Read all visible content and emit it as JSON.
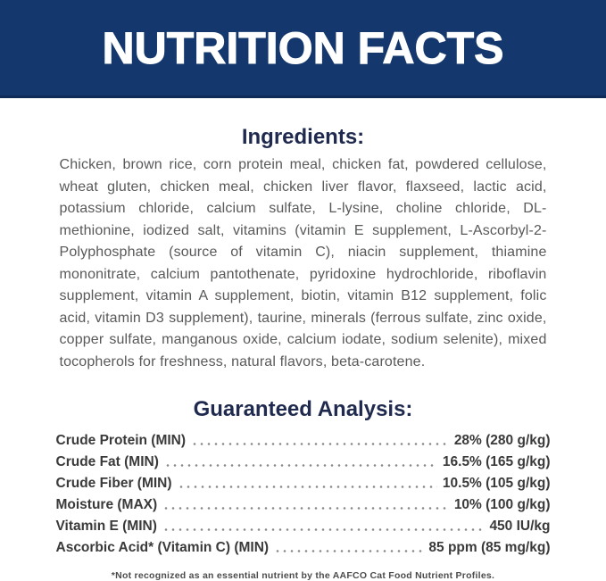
{
  "header": {
    "title": "NUTRITION FACTS"
  },
  "ingredients": {
    "heading": "Ingredients:",
    "text": "Chicken, brown rice, corn protein meal, chicken fat, powdered cellulose, wheat gluten, chicken meal, chicken liver flavor, flaxseed, lactic acid, potassium chloride, calcium sulfate, L-lysine, choline chloride, DL-methionine, iodized salt, vitamins (vitamin E supplement, L-Ascorbyl-2-Polyphosphate (source of vitamin C), niacin supplement, thiamine mononitrate, calcium pantothenate, pyridoxine hydrochloride, riboflavin supplement, vitamin A supplement, biotin, vitamin B12 supplement, folic acid, vitamin D3 supplement), taurine, minerals (ferrous sulfate, zinc oxide, copper sulfate, manganous oxide, calcium iodate, sodium selenite), mixed tocopherols for freshness, natural flavors, beta-carotene."
  },
  "analysis": {
    "heading": "Guaranteed Analysis:",
    "rows": [
      {
        "label": "Crude Protein (MIN)",
        "value": "28% (280 g/kg)"
      },
      {
        "label": "Crude Fat (MIN)",
        "value": "16.5% (165 g/kg)"
      },
      {
        "label": "Crude Fiber (MIN)",
        "value": "10.5% (105 g/kg)"
      },
      {
        "label": "Moisture (MAX)",
        "value": "10% (100 g/kg)"
      },
      {
        "label": "Vitamin E (MIN)",
        "value": "450 IU/kg"
      },
      {
        "label": "Ascorbic Acid* (Vitamin C) (MIN)",
        "value": "85 ppm (85 mg/kg)"
      }
    ]
  },
  "footnote": "*Not recognized as an essential nutrient by the AAFCO Cat Food Nutrient Profiles.",
  "colors": {
    "banner": "#14386d",
    "banner_edge": "#0e2b57",
    "heading": "#1f2a4e",
    "body_text": "#58595a",
    "table_text": "#3a3a3a",
    "leader_dots": "#8a8a8a",
    "footnote_text": "#4c4c4c"
  }
}
